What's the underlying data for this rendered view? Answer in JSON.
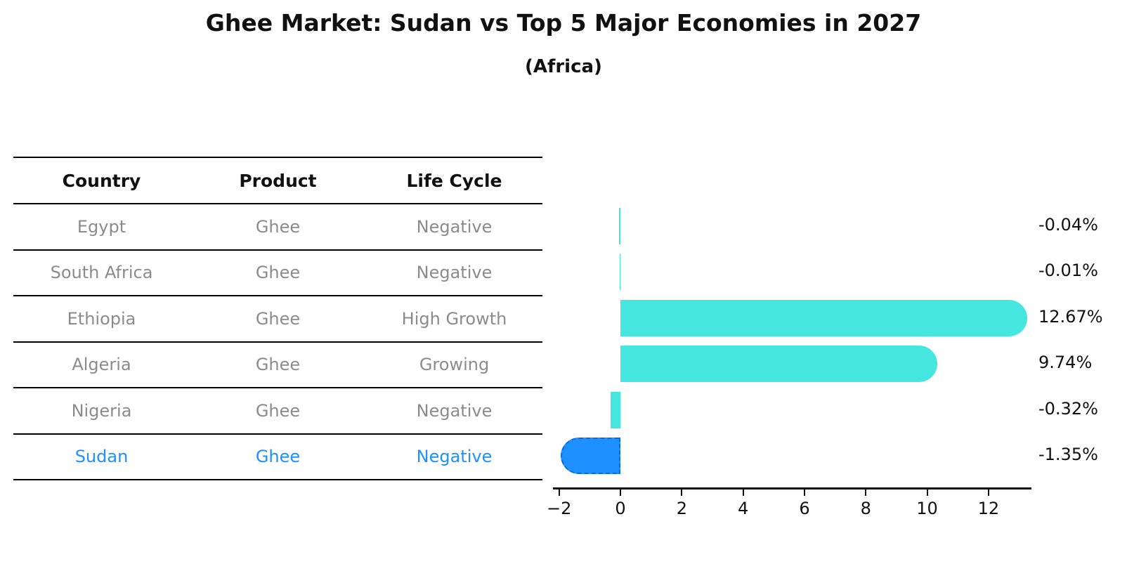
{
  "title": "Ghee Market: Sudan vs Top 5 Major Economies in 2027",
  "subtitle": "(Africa)",
  "table": {
    "headers": [
      "Country",
      "Product",
      "Life Cycle"
    ],
    "rows": [
      {
        "country": "Egypt",
        "product": "Ghee",
        "life_cycle": "Negative",
        "highlight": false
      },
      {
        "country": "South Africa",
        "product": "Ghee",
        "life_cycle": "Negative",
        "highlight": false
      },
      {
        "country": "Ethiopia",
        "product": "Ghee",
        "life_cycle": "High Growth",
        "highlight": false
      },
      {
        "country": "Algeria",
        "product": "Ghee",
        "life_cycle": "Growing",
        "highlight": false
      },
      {
        "country": "Nigeria",
        "product": "Ghee",
        "life_cycle": "Negative",
        "highlight": false
      },
      {
        "country": "Sudan",
        "product": "Ghee",
        "life_cycle": "Negative",
        "highlight": true
      }
    ]
  },
  "chart_data": {
    "type": "bar",
    "orientation": "horizontal",
    "title": "Ghee Market: Sudan vs Top 5 Major Economies in 2027",
    "subtitle": "(Africa)",
    "categories": [
      "Egypt",
      "South Africa",
      "Ethiopia",
      "Algeria",
      "Nigeria",
      "Sudan"
    ],
    "values": [
      -0.04,
      -0.01,
      12.67,
      9.74,
      -0.32,
      -1.35
    ],
    "value_labels": [
      "-0.04%",
      "-0.01%",
      "12.67%",
      "9.74%",
      "-0.32%",
      "-1.35%"
    ],
    "xlabel": "",
    "ylabel": "",
    "xlim": [
      -2.2,
      13.4
    ],
    "x_ticks": [
      -2,
      0,
      2,
      4,
      6,
      8,
      10,
      12
    ],
    "x_tick_labels": [
      "−2",
      "0",
      "2",
      "4",
      "6",
      "8",
      "10",
      "12"
    ],
    "grid": false,
    "legend": false,
    "bar_color": "#46E6E0",
    "highlight_color": "#1E90FF",
    "highlight_index": 5,
    "highlight_edge_style": "dashed"
  },
  "colors": {
    "background": "#FFFFFF",
    "title_text": "#111111",
    "table_text": "#8B8B8B",
    "header_text": "#111111",
    "highlight_text": "#1E90FF",
    "axis": "#111111",
    "value_label_text": "#111111"
  }
}
